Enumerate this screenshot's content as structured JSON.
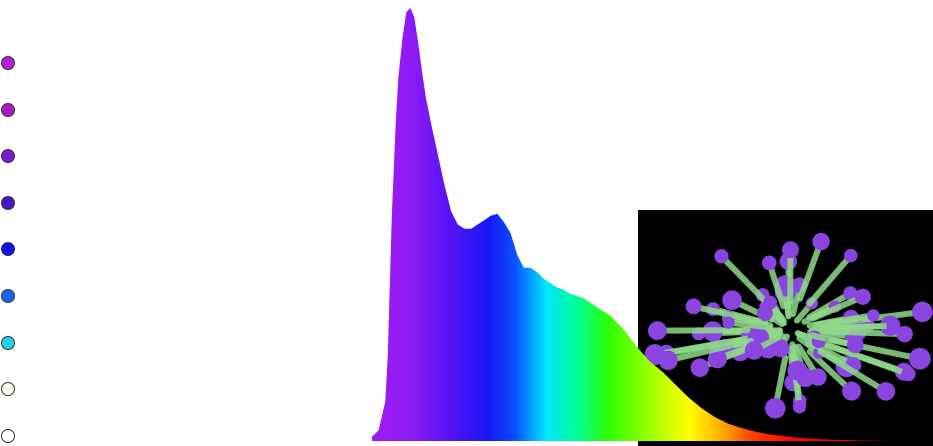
{
  "legend": {
    "channels": [
      {
        "id": "channel-1",
        "color": "#b61fd6"
      },
      {
        "id": "channel-2",
        "color": "#a81dc9"
      },
      {
        "id": "channel-3",
        "color": "#7d1bd6"
      },
      {
        "id": "channel-4",
        "color": "#4a14c9"
      },
      {
        "id": "channel-5",
        "color": "#1212e6"
      },
      {
        "id": "channel-6",
        "color": "#1566ee"
      },
      {
        "id": "channel-7",
        "color": "#1ed2ea"
      },
      {
        "id": "channel-8",
        "color": "#fbfbe6"
      },
      {
        "id": "channel-9",
        "color": "#ffffff"
      }
    ]
  },
  "photo": {
    "subject": "coral-photo",
    "background_color": "#000000",
    "tentacle_color": "#8a45e0",
    "stem_color": "#8fd98a"
  },
  "chart_data": {
    "type": "area",
    "title": "",
    "xlabel": "",
    "ylabel": "",
    "x_unit": "nm",
    "xlim": [
      380,
      780
    ],
    "ylim": [
      0,
      1
    ],
    "grid": false,
    "fill": "wavelength-rainbow-gradient",
    "series": [
      {
        "x": [
          380,
          385,
          390,
          392,
          395,
          398,
          400,
          403,
          406,
          409,
          412,
          415,
          418,
          421,
          425,
          430,
          435,
          440,
          445,
          450,
          455,
          460,
          465,
          470,
          475,
          480,
          485,
          490,
          495,
          500,
          505,
          510,
          515,
          520,
          525,
          530,
          540,
          550,
          560,
          570,
          580,
          590,
          600,
          610,
          620,
          630,
          640,
          650,
          660,
          670,
          680,
          690,
          700,
          710,
          720,
          730,
          740,
          750,
          760,
          770,
          780
        ],
        "y": [
          0.01,
          0.025,
          0.09,
          0.2,
          0.52,
          0.74,
          0.84,
          0.93,
          0.99,
          1.0,
          0.98,
          0.92,
          0.85,
          0.79,
          0.73,
          0.66,
          0.59,
          0.53,
          0.5,
          0.49,
          0.49,
          0.5,
          0.51,
          0.52,
          0.525,
          0.505,
          0.48,
          0.43,
          0.4,
          0.4,
          0.39,
          0.375,
          0.365,
          0.355,
          0.35,
          0.34,
          0.33,
          0.31,
          0.29,
          0.26,
          0.22,
          0.185,
          0.16,
          0.13,
          0.1,
          0.075,
          0.055,
          0.04,
          0.03,
          0.022,
          0.016,
          0.012,
          0.008,
          0.006,
          0.004,
          0.003,
          0.002,
          0.001,
          0.001,
          0.0,
          0.0
        ]
      }
    ]
  }
}
